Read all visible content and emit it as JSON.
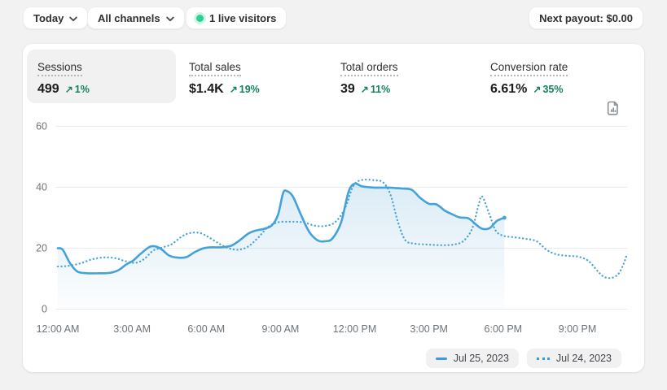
{
  "topbar": {
    "date_range_button": "Today",
    "channel_button": "All channels",
    "live_visitors_badge": "1 live visitors",
    "next_payout_button": "Next payout: $0.00"
  },
  "metrics": [
    {
      "id": "sessions",
      "label": "Sessions",
      "value": "499",
      "delta": "1%",
      "selected": true
    },
    {
      "id": "total-sales",
      "label": "Total sales",
      "value": "$1.4K",
      "delta": "19%",
      "selected": false
    },
    {
      "id": "total-orders",
      "label": "Total orders",
      "value": "39",
      "delta": "11%",
      "selected": false
    },
    {
      "id": "conversion-rate",
      "label": "Conversion rate",
      "value": "6.61%",
      "delta": "35%",
      "selected": false
    }
  ],
  "icons": {
    "trend_up": "↗",
    "chevron_down": "chevron-down-icon",
    "live_dot": "green-pulse-dot",
    "report": "document-bar-chart-icon"
  },
  "colors": {
    "line_blue": "#44a2da",
    "area_fill": "#5ba7d4",
    "success_green": "#148060",
    "live_green": "#2bd192",
    "grid": "#e9ebee",
    "axis_text": "#6d7378",
    "page_bg": "#f2f2f2",
    "card_bg": "#ffffff",
    "selected_tab_bg": "#f1f1f1"
  },
  "chart_data": {
    "type": "line",
    "title": "",
    "xlabel": "",
    "ylabel": "",
    "x_unit": "hour-of-day",
    "x_range_hours": [
      0,
      23
    ],
    "y_axis": {
      "ticks": [
        0,
        20,
        40,
        60
      ],
      "range": [
        0,
        60
      ]
    },
    "x_axis": {
      "tick_hours": [
        0,
        3,
        6,
        9,
        12,
        15,
        18,
        21
      ],
      "tick_labels": [
        "12:00 AM",
        "3:00 AM",
        "6:00 AM",
        "9:00 AM",
        "12:00 PM",
        "3:00 PM",
        "6:00 PM",
        "9:00 PM"
      ]
    },
    "grid": "horizontal",
    "legend_position": "bottom-right",
    "series": [
      {
        "name": "Jul 25, 2023",
        "style": "solid",
        "color": "#44a2da",
        "area_fill": true,
        "points": [
          [
            0,
            20
          ],
          [
            0.2,
            19.5
          ],
          [
            0.5,
            15
          ],
          [
            0.8,
            12.3
          ],
          [
            1.2,
            11.8
          ],
          [
            1.7,
            11.8
          ],
          [
            2.1,
            11.9
          ],
          [
            2.45,
            12.8
          ],
          [
            2.75,
            14.6
          ],
          [
            3.05,
            16
          ],
          [
            3.35,
            18.2
          ],
          [
            3.7,
            20.4
          ],
          [
            3.95,
            20.6
          ],
          [
            4.2,
            19.6
          ],
          [
            4.5,
            17.6
          ],
          [
            4.85,
            16.9
          ],
          [
            5.2,
            17.1
          ],
          [
            5.55,
            18.8
          ],
          [
            5.9,
            20
          ],
          [
            6.2,
            20.3
          ],
          [
            6.6,
            20.3
          ],
          [
            7.0,
            20.8
          ],
          [
            7.3,
            22.3
          ],
          [
            7.7,
            24.8
          ],
          [
            8.0,
            25.8
          ],
          [
            8.35,
            26.4
          ],
          [
            8.65,
            27.5
          ],
          [
            8.9,
            31
          ],
          [
            9.1,
            38
          ],
          [
            9.25,
            38.8
          ],
          [
            9.5,
            37
          ],
          [
            9.8,
            31.5
          ],
          [
            10.15,
            25.5
          ],
          [
            10.5,
            22.6
          ],
          [
            10.8,
            22.3
          ],
          [
            11.1,
            23.2
          ],
          [
            11.45,
            28.5
          ],
          [
            11.75,
            38.5
          ],
          [
            12.0,
            41.2
          ],
          [
            12.3,
            40.3
          ],
          [
            12.8,
            39.9
          ],
          [
            13.4,
            39.9
          ],
          [
            13.9,
            39.6
          ],
          [
            14.3,
            39.2
          ],
          [
            14.65,
            36.5
          ],
          [
            15.0,
            34.6
          ],
          [
            15.3,
            34.4
          ],
          [
            15.65,
            32.3
          ],
          [
            15.95,
            31.1
          ],
          [
            16.25,
            30.1
          ],
          [
            16.6,
            29.8
          ],
          [
            16.9,
            27.8
          ],
          [
            17.15,
            26.4
          ],
          [
            17.45,
            26.6
          ],
          [
            17.75,
            29
          ],
          [
            18.05,
            30
          ]
        ]
      },
      {
        "name": "Jul 24, 2023",
        "style": "dotted",
        "color": "#44a2da",
        "area_fill": false,
        "points": [
          [
            0,
            14
          ],
          [
            0.4,
            14.2
          ],
          [
            0.9,
            15
          ],
          [
            1.4,
            16.4
          ],
          [
            1.9,
            17
          ],
          [
            2.35,
            16.7
          ],
          [
            2.75,
            15.7
          ],
          [
            3.15,
            15.2
          ],
          [
            3.5,
            16.5
          ],
          [
            3.85,
            19.2
          ],
          [
            4.2,
            20.2
          ],
          [
            4.6,
            21.3
          ],
          [
            5.0,
            23.8
          ],
          [
            5.35,
            25
          ],
          [
            5.75,
            25
          ],
          [
            6.1,
            23.6
          ],
          [
            6.5,
            21.6
          ],
          [
            6.9,
            20
          ],
          [
            7.3,
            19.5
          ],
          [
            7.7,
            20.6
          ],
          [
            8.1,
            23.5
          ],
          [
            8.5,
            27
          ],
          [
            8.9,
            28.5
          ],
          [
            9.4,
            28.7
          ],
          [
            9.9,
            28.5
          ],
          [
            10.4,
            27.4
          ],
          [
            10.8,
            27.3
          ],
          [
            11.2,
            28.5
          ],
          [
            11.6,
            33
          ],
          [
            11.95,
            40.5
          ],
          [
            12.3,
            42.4
          ],
          [
            12.8,
            42.3
          ],
          [
            13.15,
            41.6
          ],
          [
            13.45,
            37.5
          ],
          [
            13.75,
            28.5
          ],
          [
            14.05,
            22.6
          ],
          [
            14.45,
            21.5
          ],
          [
            14.95,
            21.2
          ],
          [
            15.5,
            21
          ],
          [
            16.0,
            21.2
          ],
          [
            16.4,
            22.4
          ],
          [
            16.75,
            26.5
          ],
          [
            17.0,
            34
          ],
          [
            17.15,
            37
          ],
          [
            17.45,
            31
          ],
          [
            17.7,
            25.8
          ],
          [
            18.0,
            24.1
          ],
          [
            18.45,
            23.6
          ],
          [
            18.9,
            23.1
          ],
          [
            19.35,
            22.3
          ],
          [
            19.75,
            19.5
          ],
          [
            20.15,
            18
          ],
          [
            20.6,
            17.5
          ],
          [
            21.05,
            17.2
          ],
          [
            21.45,
            15.8
          ],
          [
            21.85,
            12.2
          ],
          [
            22.1,
            10.5
          ],
          [
            22.4,
            10.3
          ],
          [
            22.65,
            11.5
          ],
          [
            22.85,
            14.5
          ],
          [
            23.0,
            18
          ]
        ]
      }
    ]
  }
}
